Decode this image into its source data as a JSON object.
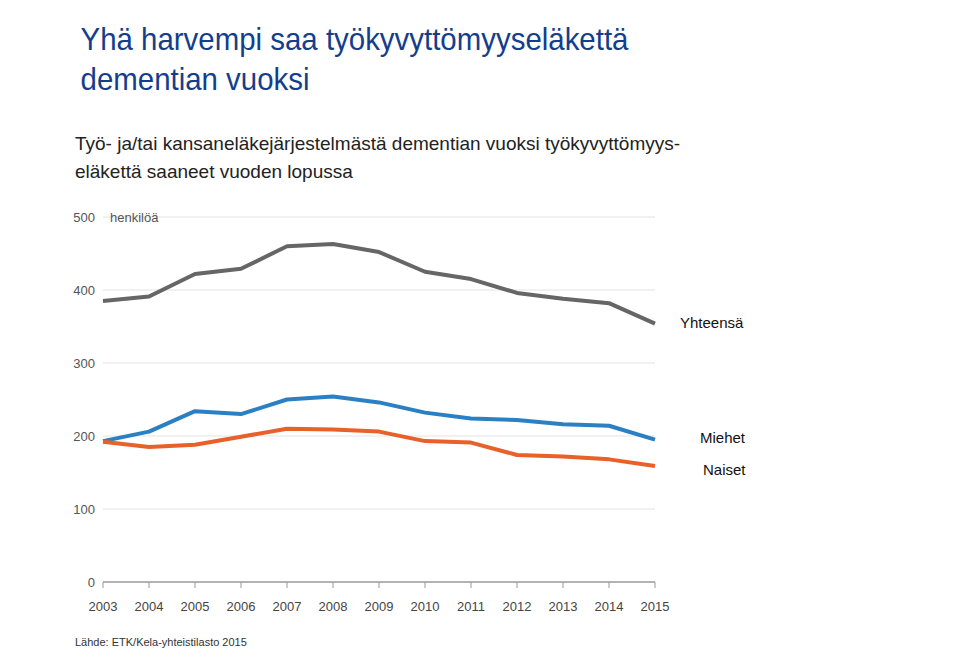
{
  "chart_data": {
    "type": "line",
    "title": "Yhä harvempi saa työkyvyttömyyseläkettä\ndementian vuoksi",
    "subtitle": "Työ- ja/tai kansaneläkejärjestelmästä dementian  vuoksi työkyvyttömyys-\neläkettä saaneet vuoden lopussa",
    "y_label": "henkilöä",
    "source": "Lähde: ETK/Kela-yhteistilasto 2015",
    "x": [
      2003,
      2004,
      2005,
      2006,
      2007,
      2008,
      2009,
      2010,
      2011,
      2012,
      2013,
      2014,
      2015
    ],
    "series": [
      {
        "name": "Yhteensä",
        "color": "#666666",
        "values": [
          385,
          391,
          422,
          429,
          460,
          463,
          452,
          425,
          415,
          396,
          388,
          382,
          354
        ]
      },
      {
        "name": "Miehet",
        "color": "#2a80c2",
        "values": [
          193,
          206,
          234,
          230,
          250,
          254,
          246,
          232,
          224,
          222,
          216,
          214,
          195
        ]
      },
      {
        "name": "Naiset",
        "color": "#e8602a",
        "values": [
          192,
          185,
          188,
          199,
          210,
          209,
          206,
          193,
          191,
          174,
          172,
          168,
          159
        ]
      }
    ],
    "xlim": [
      2003,
      2015
    ],
    "xticks": [
      2003,
      2004,
      2005,
      2006,
      2007,
      2008,
      2009,
      2010,
      2011,
      2012,
      2013,
      2014,
      2015
    ],
    "ylim": [
      0,
      500
    ],
    "yticks": [
      0,
      100,
      200,
      300,
      400,
      500
    ],
    "grid": true
  }
}
